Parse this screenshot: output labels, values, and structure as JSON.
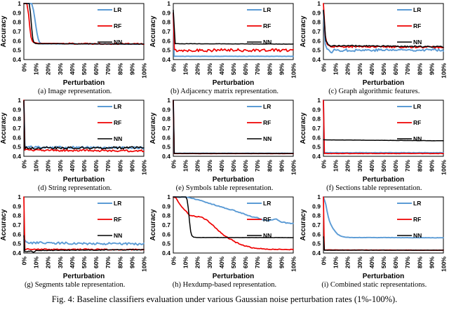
{
  "figure": {
    "caption": "Fig. 4: Baseline classifiers evaluation under various Gaussian noise perturbation rates (1%-100%)."
  },
  "axes": {
    "xlabel": "Perturbation",
    "ylabel": "Accuracy",
    "xlim": [
      0,
      100
    ],
    "ylim": [
      0.4,
      1
    ],
    "xtick_labels": [
      "0%",
      "10%",
      "20%",
      "30%",
      "40%",
      "50%",
      "60%",
      "70%",
      "80%",
      "90%",
      "100%"
    ],
    "ytick_labels": [
      "1",
      "0.9",
      "0.8",
      "0.7",
      "0.6",
      "0.5",
      "0.4"
    ],
    "ytick_values": [
      1,
      0.9,
      0.8,
      0.7,
      0.6,
      0.5,
      0.4
    ],
    "grid": false,
    "legend_position": "top-right-inside",
    "legend": [
      "LR",
      "RF",
      "NN"
    ]
  },
  "colors": {
    "LR": "#5B9BD5",
    "RF": "#EE0000",
    "NN": "#000000",
    "border": "#000000",
    "text": "#000000"
  },
  "chart_data": [
    {
      "type": "line",
      "caption": "(a) Image representation.",
      "series": [
        {
          "name": "LR",
          "color": "#5B9BD5",
          "noise": 0.002,
          "seed": 11,
          "keypoints": [
            [
              0,
              1
            ],
            [
              6.5,
              1
            ],
            [
              8,
              0.93
            ],
            [
              9,
              0.85
            ],
            [
              10,
              0.76
            ],
            [
              11,
              0.68
            ],
            [
              12,
              0.62
            ],
            [
              13,
              0.585
            ],
            [
              15,
              0.57
            ],
            [
              100,
              0.565
            ]
          ]
        },
        {
          "name": "RF",
          "color": "#EE0000",
          "noise": 0.007,
          "noise_from": 33,
          "seed": 22,
          "keypoints": [
            [
              0,
              1
            ],
            [
              2.5,
              1
            ],
            [
              4,
              0.88
            ],
            [
              5,
              0.74
            ],
            [
              6,
              0.64
            ],
            [
              7,
              0.6
            ],
            [
              8,
              0.585
            ],
            [
              12,
              0.573
            ],
            [
              100,
              0.569
            ]
          ]
        },
        {
          "name": "NN",
          "color": "#000000",
          "noise": 0.0015,
          "seed": 33,
          "keypoints": [
            [
              0,
              1
            ],
            [
              4.5,
              1
            ],
            [
              5.5,
              0.9
            ],
            [
              6.5,
              0.74
            ],
            [
              7.5,
              0.62
            ],
            [
              8.5,
              0.58
            ],
            [
              10,
              0.57
            ],
            [
              100,
              0.566
            ]
          ]
        }
      ]
    },
    {
      "type": "line",
      "caption": "(b) Adjacency matrix representation.",
      "series": [
        {
          "name": "LR",
          "color": "#5B9BD5",
          "noise": 0.0015,
          "seed": 44,
          "keypoints": [
            [
              0,
              0.9
            ],
            [
              0.7,
              0.435
            ],
            [
              100,
              0.435
            ]
          ]
        },
        {
          "name": "RF",
          "color": "#EE0000",
          "noise": 0.016,
          "seed": 55,
          "keypoints": [
            [
              0,
              0.9
            ],
            [
              0.9,
              0.5
            ],
            [
              100,
              0.5
            ]
          ]
        },
        {
          "name": "NN",
          "color": "#000000",
          "noise": 0.0015,
          "seed": 66,
          "keypoints": [
            [
              0,
              0.93
            ],
            [
              1.6,
              0.57
            ],
            [
              100,
              0.566
            ]
          ]
        }
      ]
    },
    {
      "type": "line",
      "caption": "(c) Graph algorithmic features.",
      "series": [
        {
          "name": "LR",
          "color": "#5B9BD5",
          "noise": 0.014,
          "seed": 77,
          "keypoints": [
            [
              0,
              0.93
            ],
            [
              1.5,
              0.56
            ],
            [
              4,
              0.5
            ],
            [
              6,
              0.47
            ],
            [
              8,
              0.5
            ],
            [
              100,
              0.505
            ]
          ]
        },
        {
          "name": "RF",
          "color": "#EE0000",
          "noise": 0.009,
          "seed": 88,
          "keypoints": [
            [
              0,
              1
            ],
            [
              1.5,
              0.66
            ],
            [
              3,
              0.57
            ],
            [
              6,
              0.54
            ],
            [
              100,
              0.532
            ]
          ]
        },
        {
          "name": "NN",
          "color": "#000000",
          "noise": 0.007,
          "seed": 99,
          "keypoints": [
            [
              0,
              0.93
            ],
            [
              2,
              0.6
            ],
            [
              5,
              0.55
            ],
            [
              100,
              0.537
            ]
          ]
        }
      ]
    },
    {
      "type": "line",
      "caption": "(d) String representation.",
      "series": [
        {
          "name": "LR",
          "color": "#5B9BD5",
          "noise": 0.011,
          "seed": 101,
          "keypoints": [
            [
              0,
              1
            ],
            [
              0.8,
              0.5
            ],
            [
              100,
              0.49
            ]
          ]
        },
        {
          "name": "RF",
          "color": "#EE0000",
          "noise": 0.01,
          "seed": 102,
          "keypoints": [
            [
              0,
              1
            ],
            [
              0.8,
              0.465
            ],
            [
              100,
              0.458
            ]
          ]
        },
        {
          "name": "NN",
          "color": "#000000",
          "noise": 0.014,
          "seed": 103,
          "keypoints": [
            [
              0,
              1
            ],
            [
              0.8,
              0.49
            ],
            [
              100,
              0.49
            ]
          ]
        }
      ]
    },
    {
      "type": "line",
      "caption": "(e) Symbols table representation.",
      "series": [
        {
          "name": "LR",
          "color": "#5B9BD5",
          "noise": 0.001,
          "seed": 104,
          "keypoints": [
            [
              0,
              1
            ],
            [
              0.7,
              0.432
            ],
            [
              100,
              0.432
            ]
          ]
        },
        {
          "name": "RF",
          "color": "#EE0000",
          "noise": 0.001,
          "seed": 105,
          "keypoints": [
            [
              0,
              1
            ],
            [
              0.75,
              0.429
            ],
            [
              100,
              0.429
            ]
          ]
        },
        {
          "name": "NN",
          "color": "#000000",
          "noise": 0.001,
          "seed": 106,
          "keypoints": [
            [
              0,
              1
            ],
            [
              0.8,
              0.431
            ],
            [
              100,
              0.431
            ]
          ]
        }
      ]
    },
    {
      "type": "line",
      "caption": "(f) Sections table representation.",
      "series": [
        {
          "name": "LR",
          "color": "#5B9BD5",
          "noise": 0.002,
          "seed": 107,
          "keypoints": [
            [
              0,
              1
            ],
            [
              0.7,
              0.438
            ],
            [
              100,
              0.438
            ]
          ]
        },
        {
          "name": "RF",
          "color": "#EE0000",
          "noise": 0.002,
          "seed": 108,
          "keypoints": [
            [
              0,
              1
            ],
            [
              0.8,
              0.43
            ],
            [
              100,
              0.43
            ]
          ]
        },
        {
          "name": "NN",
          "color": "#000000",
          "noise": 0.001,
          "seed": 109,
          "keypoints": [
            [
              0,
              0.576
            ],
            [
              100,
              0.566
            ]
          ]
        }
      ]
    },
    {
      "type": "line",
      "caption": "(g) Segments table representation.",
      "series": [
        {
          "name": "LR",
          "color": "#5B9BD5",
          "noise": 0.012,
          "seed": 110,
          "keypoints": [
            [
              0,
              0.55
            ],
            [
              2,
              0.51
            ],
            [
              100,
              0.495
            ]
          ]
        },
        {
          "name": "RF",
          "color": "#EE0000",
          "noise": 0.006,
          "seed": 111,
          "keypoints": [
            [
              0,
              1
            ],
            [
              0.8,
              0.44
            ],
            [
              100,
              0.437
            ]
          ]
        },
        {
          "name": "NN",
          "color": "#000000",
          "noise": 0.004,
          "seed": 112,
          "keypoints": [
            [
              0,
              0.585
            ],
            [
              0.8,
              0.415
            ],
            [
              6,
              0.42
            ],
            [
              8,
              0.405
            ],
            [
              10,
              0.428
            ],
            [
              100,
              0.436
            ]
          ]
        }
      ]
    },
    {
      "type": "line",
      "caption": "(h) Hexdump-based representation.",
      "series": [
        {
          "name": "LR",
          "color": "#5B9BD5",
          "noise": 0.004,
          "seed": 113,
          "keypoints": [
            [
              0,
              1
            ],
            [
              13,
              0.995
            ],
            [
              20,
              0.97
            ],
            [
              25,
              0.952
            ],
            [
              30,
              0.93
            ],
            [
              35,
              0.913
            ],
            [
              40,
              0.893
            ],
            [
              45,
              0.873
            ],
            [
              50,
              0.858
            ],
            [
              55,
              0.835
            ],
            [
              60,
              0.814
            ],
            [
              65,
              0.79
            ],
            [
              70,
              0.78
            ],
            [
              74,
              0.76
            ],
            [
              78,
              0.744
            ],
            [
              82,
              0.755
            ],
            [
              86,
              0.762
            ],
            [
              90,
              0.733
            ],
            [
              95,
              0.72
            ],
            [
              100,
              0.715
            ]
          ]
        },
        {
          "name": "RF",
          "color": "#EE0000",
          "noise": 0.005,
          "seed": 114,
          "keypoints": [
            [
              0,
              1
            ],
            [
              2,
              0.99
            ],
            [
              5,
              0.93
            ],
            [
              7,
              0.89
            ],
            [
              9,
              0.87
            ],
            [
              11,
              0.84
            ],
            [
              13,
              0.81
            ],
            [
              15,
              0.8
            ],
            [
              20,
              0.79
            ],
            [
              25,
              0.775
            ],
            [
              28,
              0.75
            ],
            [
              32,
              0.71
            ],
            [
              36,
              0.66
            ],
            [
              40,
              0.615
            ],
            [
              44,
              0.575
            ],
            [
              48,
              0.545
            ],
            [
              52,
              0.515
            ],
            [
              56,
              0.495
            ],
            [
              60,
              0.477
            ],
            [
              64,
              0.462
            ],
            [
              68,
              0.452
            ],
            [
              72,
              0.448
            ],
            [
              76,
              0.444
            ],
            [
              80,
              0.441
            ],
            [
              85,
              0.44
            ],
            [
              90,
              0.438
            ],
            [
              95,
              0.437
            ],
            [
              100,
              0.442
            ]
          ]
        },
        {
          "name": "NN",
          "color": "#000000",
          "noise": 0.0008,
          "seed": 115,
          "keypoints": [
            [
              0,
              1
            ],
            [
              10.5,
              1
            ],
            [
              11.5,
              0.97
            ],
            [
              12.5,
              0.88
            ],
            [
              13.5,
              0.74
            ],
            [
              14.5,
              0.63
            ],
            [
              15.5,
              0.585
            ],
            [
              17,
              0.57
            ],
            [
              20,
              0.566
            ],
            [
              100,
              0.565
            ]
          ]
        }
      ]
    },
    {
      "type": "line",
      "caption": "(i) Combined static representations.",
      "series": [
        {
          "name": "LR",
          "color": "#5B9BD5",
          "noise": 0.0015,
          "seed": 116,
          "keypoints": [
            [
              0,
              1
            ],
            [
              2,
              0.92
            ],
            [
              3,
              0.85
            ],
            [
              4,
              0.79
            ],
            [
              5,
              0.745
            ],
            [
              6,
              0.71
            ],
            [
              7,
              0.685
            ],
            [
              8,
              0.662
            ],
            [
              9,
              0.645
            ],
            [
              10,
              0.627
            ],
            [
              11,
              0.613
            ],
            [
              12,
              0.6
            ],
            [
              14,
              0.585
            ],
            [
              16,
              0.575
            ],
            [
              18,
              0.57
            ],
            [
              22,
              0.566
            ],
            [
              100,
              0.563
            ]
          ]
        },
        {
          "name": "RF",
          "color": "#EE0000",
          "noise": 0.001,
          "seed": 117,
          "keypoints": [
            [
              0,
              1
            ],
            [
              0.7,
              0.433
            ],
            [
              100,
              0.43
            ]
          ]
        },
        {
          "name": "NN",
          "color": "#000000",
          "noise": 0.001,
          "seed": 118,
          "keypoints": [
            [
              0,
              0.575
            ],
            [
              0.8,
              0.43
            ],
            [
              100,
              0.43
            ]
          ]
        }
      ]
    }
  ]
}
